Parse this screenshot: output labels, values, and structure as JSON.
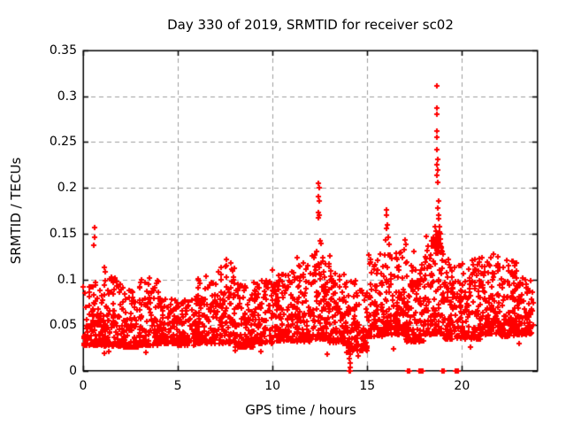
{
  "chart_data": {
    "type": "scatter",
    "title": "Day 330 of 2019, SRMTID for receiver sc02",
    "xlabel": "GPS time / hours",
    "ylabel": "SRMTID / TECUs",
    "xlim": [
      0,
      24
    ],
    "ylim": [
      0,
      0.35
    ],
    "xticks": {
      "values": [
        0,
        5,
        10,
        15,
        20
      ],
      "labels": [
        "0",
        "5",
        "10",
        "15",
        "20"
      ]
    },
    "yticks": {
      "values": [
        0,
        0.05,
        0.1,
        0.15,
        0.2,
        0.25,
        0.3,
        0.35
      ],
      "labels": [
        "0",
        "0.05",
        "0.1",
        "0.15",
        "0.2",
        "0.25",
        "0.3",
        "0.35"
      ]
    },
    "grid": {
      "visible": true,
      "style": "dashed",
      "color": "#9e9e9e"
    },
    "border_color": "#000000",
    "legend": null,
    "marker": {
      "shape": "plus",
      "color": "#ff0000",
      "size": 7
    },
    "background_scatter": {
      "comment": "dense red + band; segments are [x_start_h, x_end_h, count, y_low_TECU, y_high_TECU]",
      "seed": 20191130,
      "skew": 1.9,
      "segments": [
        [
          0.02,
          1.0,
          110,
          0.028,
          0.1
        ],
        [
          1.0,
          2.0,
          105,
          0.027,
          0.105
        ],
        [
          2.0,
          3.0,
          100,
          0.026,
          0.092
        ],
        [
          3.0,
          4.0,
          105,
          0.028,
          0.1
        ],
        [
          4.0,
          5.0,
          100,
          0.03,
          0.08
        ],
        [
          5.0,
          6.0,
          100,
          0.028,
          0.082
        ],
        [
          6.0,
          7.0,
          105,
          0.03,
          0.105
        ],
        [
          7.0,
          8.0,
          105,
          0.03,
          0.118
        ],
        [
          8.0,
          9.0,
          100,
          0.026,
          0.095
        ],
        [
          9.0,
          10.0,
          105,
          0.03,
          0.1
        ],
        [
          10.0,
          11.0,
          110,
          0.033,
          0.11
        ],
        [
          11.0,
          12.0,
          110,
          0.032,
          0.118
        ],
        [
          12.0,
          13.0,
          115,
          0.035,
          0.128
        ],
        [
          13.0,
          14.0,
          105,
          0.03,
          0.11
        ],
        [
          14.0,
          15.0,
          100,
          0.022,
          0.1
        ],
        [
          15.0,
          16.0,
          110,
          0.038,
          0.128
        ],
        [
          16.0,
          17.0,
          115,
          0.04,
          0.132
        ],
        [
          17.0,
          18.0,
          110,
          0.032,
          0.12
        ],
        [
          18.0,
          19.0,
          120,
          0.04,
          0.148
        ],
        [
          18.55,
          18.95,
          20,
          0.128,
          0.162
        ],
        [
          19.0,
          20.0,
          110,
          0.035,
          0.12
        ],
        [
          20.0,
          21.0,
          110,
          0.035,
          0.122
        ],
        [
          21.0,
          22.0,
          115,
          0.04,
          0.128
        ],
        [
          22.0,
          23.0,
          110,
          0.038,
          0.122
        ],
        [
          23.0,
          23.75,
          80,
          0.04,
          0.102
        ]
      ]
    },
    "spike_points": [
      [
        0.58,
        0.137
      ],
      [
        0.6,
        0.157
      ],
      [
        0.62,
        0.146
      ],
      [
        1.12,
        0.113
      ],
      [
        1.17,
        0.108
      ],
      [
        3.5,
        0.102
      ],
      [
        7.3,
        0.113
      ],
      [
        7.55,
        0.122
      ],
      [
        7.8,
        0.118
      ],
      [
        11.3,
        0.124
      ],
      [
        12.42,
        0.205
      ],
      [
        12.45,
        0.2
      ],
      [
        12.43,
        0.19
      ],
      [
        12.46,
        0.186
      ],
      [
        12.42,
        0.173
      ],
      [
        12.47,
        0.17
      ],
      [
        12.44,
        0.167
      ],
      [
        12.5,
        0.142
      ],
      [
        12.55,
        0.139
      ],
      [
        12.35,
        0.131
      ],
      [
        13.05,
        0.126
      ],
      [
        15.95,
        0.143
      ],
      [
        16.0,
        0.176
      ],
      [
        16.02,
        0.17
      ],
      [
        16.05,
        0.16
      ],
      [
        16.0,
        0.156
      ],
      [
        16.1,
        0.146
      ],
      [
        16.15,
        0.138
      ],
      [
        16.95,
        0.132
      ],
      [
        17.0,
        0.143
      ],
      [
        17.05,
        0.138
      ],
      [
        17.45,
        0.131
      ],
      [
        18.7,
        0.311
      ],
      [
        18.68,
        0.287
      ],
      [
        18.69,
        0.28
      ],
      [
        18.67,
        0.262
      ],
      [
        18.7,
        0.255
      ],
      [
        18.68,
        0.242
      ],
      [
        18.71,
        0.231
      ],
      [
        18.69,
        0.225
      ],
      [
        18.72,
        0.219
      ],
      [
        18.7,
        0.214
      ],
      [
        18.73,
        0.206
      ],
      [
        18.75,
        0.186
      ],
      [
        18.74,
        0.178
      ],
      [
        18.78,
        0.17
      ],
      [
        18.76,
        0.166
      ],
      [
        18.6,
        0.158
      ],
      [
        18.65,
        0.153
      ],
      [
        18.7,
        0.149
      ],
      [
        18.75,
        0.145
      ],
      [
        18.8,
        0.152
      ],
      [
        18.82,
        0.158
      ],
      [
        18.85,
        0.144
      ],
      [
        18.88,
        0.139
      ],
      [
        18.92,
        0.135
      ],
      [
        18.96,
        0.131
      ],
      [
        19.0,
        0.128
      ],
      [
        19.3,
        0.122
      ],
      [
        20.9,
        0.123
      ],
      [
        21.9,
        0.125
      ],
      [
        22.8,
        0.115
      ],
      [
        23.2,
        0.102
      ]
    ],
    "zero_points": [
      [
        14.05,
        0
      ],
      [
        14.12,
        0
      ],
      [
        17.15,
        0
      ],
      [
        17.22,
        0
      ],
      [
        17.75,
        0
      ],
      [
        17.79,
        0
      ],
      [
        17.83,
        0
      ],
      [
        17.87,
        0
      ],
      [
        17.91,
        0
      ],
      [
        17.95,
        0
      ],
      [
        18.97,
        0
      ],
      [
        19.03,
        0
      ],
      [
        19.65,
        0
      ],
      [
        19.69,
        0
      ],
      [
        19.73,
        0
      ],
      [
        19.77,
        0
      ],
      [
        19.81,
        0
      ]
    ],
    "low_points": [
      [
        1.1,
        0.019
      ],
      [
        1.35,
        0.021
      ],
      [
        3.3,
        0.02
      ],
      [
        8.05,
        0.022
      ],
      [
        9.4,
        0.021
      ],
      [
        12.88,
        0.018
      ],
      [
        13.9,
        0.02
      ],
      [
        14.08,
        0.004
      ],
      [
        14.1,
        0.009
      ],
      [
        14.06,
        0.014
      ],
      [
        14.11,
        0.018
      ],
      [
        14.09,
        0.024
      ],
      [
        14.13,
        0.03
      ],
      [
        14.07,
        0.036
      ],
      [
        14.1,
        0.043
      ],
      [
        14.5,
        0.016
      ],
      [
        16.4,
        0.024
      ],
      [
        20.45,
        0.026
      ],
      [
        23.0,
        0.03
      ]
    ]
  }
}
